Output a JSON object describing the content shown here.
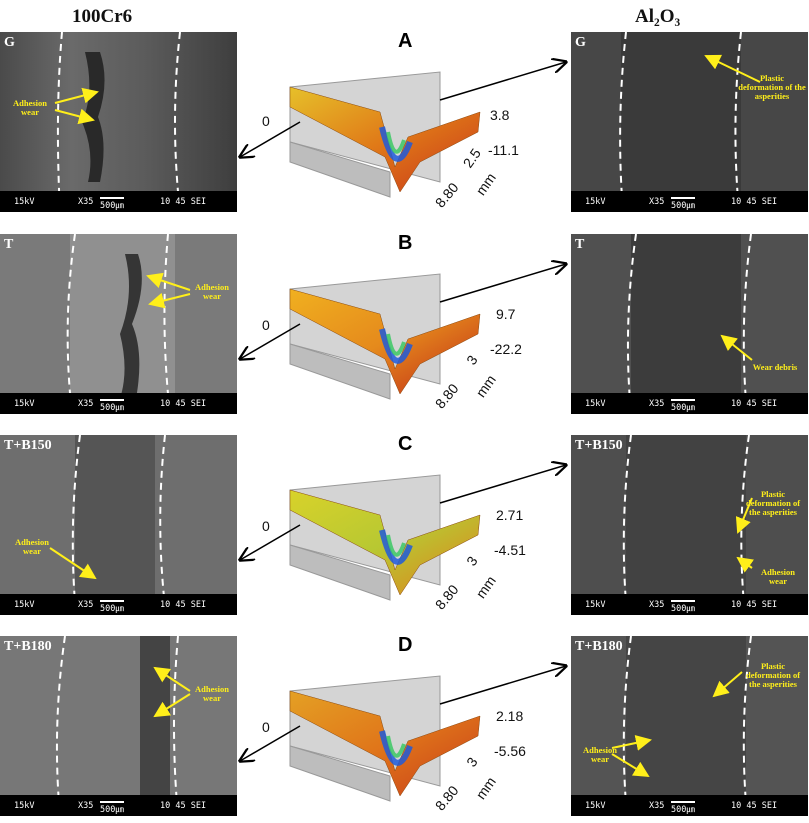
{
  "headers": {
    "left": "100Cr6",
    "right": "Al₂O₃"
  },
  "scale_bar": {
    "kv": "15kV",
    "mag": "X35",
    "scale": "500㎛",
    "wd": "10 45 SEI"
  },
  "rows": [
    {
      "letter": "A",
      "left": {
        "tag": "G",
        "annotations": [
          "Adhesion wear"
        ]
      },
      "right": {
        "tag": "G",
        "annotations": [
          "Plastic deformation of the asperities"
        ]
      },
      "profile": {
        "mm": "mm",
        "zero": "0",
        "top_value": "3.8",
        "bottom_value": "-11.1",
        "depth_tick": "2.5",
        "x_tick": "8.80",
        "depth_unit": "mm",
        "colors": [
          "#e6c02a",
          "#e07a18",
          "#c8341a"
        ]
      }
    },
    {
      "letter": "B",
      "left": {
        "tag": "T",
        "annotations": [
          "Adhesion wear"
        ]
      },
      "right": {
        "tag": "T",
        "annotations": [
          "Wear debris"
        ]
      },
      "profile": {
        "mm": "mm",
        "zero": "0",
        "top_value": "9.7",
        "bottom_value": "-22.2",
        "depth_tick": "3",
        "x_tick": "8.80",
        "depth_unit": "mm",
        "colors": [
          "#f0b020",
          "#e58a1c",
          "#c02818"
        ]
      }
    },
    {
      "letter": "C",
      "left": {
        "tag": "T+B150",
        "annotations": [
          "Adhesion wear"
        ]
      },
      "right": {
        "tag": "T+B150",
        "annotations": [
          "Plastic deformation of the asperities",
          "Adhesion wear"
        ]
      },
      "profile": {
        "mm": "mm",
        "zero": "0",
        "top_value": "2.71",
        "bottom_value": "-4.51",
        "depth_tick": "3",
        "x_tick": "8.80",
        "depth_unit": "mm",
        "colors": [
          "#d8d22a",
          "#b8c832",
          "#e07e1c"
        ]
      }
    },
    {
      "letter": "D",
      "left": {
        "tag": "T+B180",
        "annotations": [
          "Adhesion wear"
        ]
      },
      "right": {
        "tag": "T+B180",
        "annotations": [
          "Plastic deformation of the asperities",
          "Adhesion wear"
        ]
      },
      "profile": {
        "mm": "mm",
        "zero": "0",
        "top_value": "2.18",
        "bottom_value": "-5.56",
        "depth_tick": "3",
        "x_tick": "8.80",
        "depth_unit": "mm",
        "colors": [
          "#e4a024",
          "#e0761a",
          "#c83c1a"
        ]
      }
    }
  ]
}
